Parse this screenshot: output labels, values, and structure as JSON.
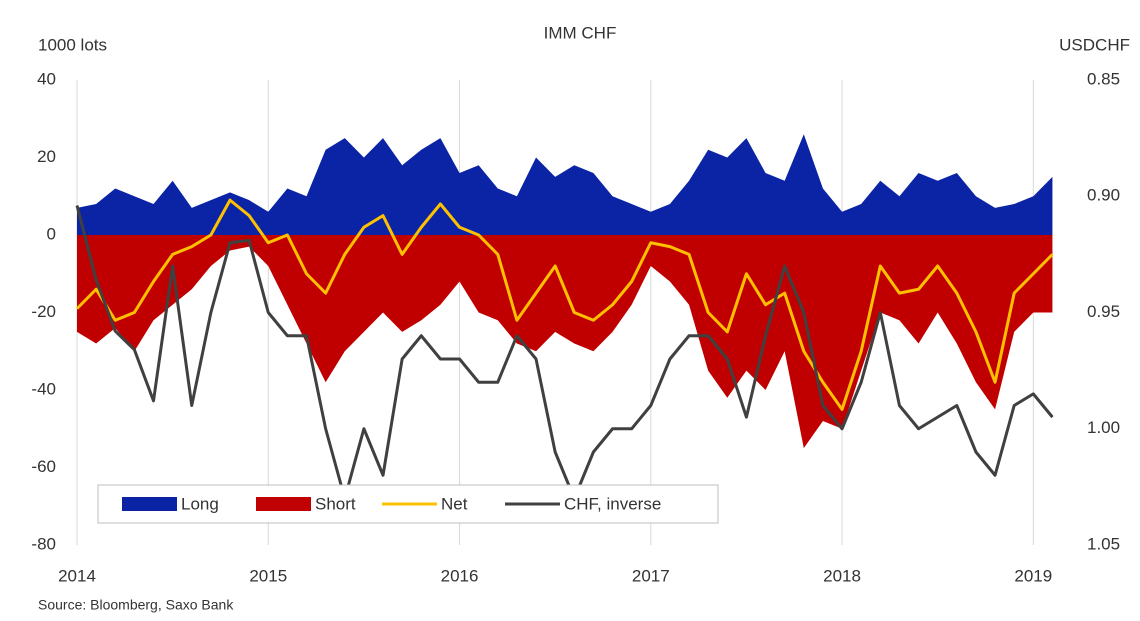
{
  "chart_data": {
    "type": "area-line",
    "title": "IMM CHF",
    "y_label": "1000 lots",
    "y2_label": "USDCHF",
    "source": "Source: Bloomberg,  Saxo Bank",
    "x": [
      2014.0,
      2014.1,
      2014.2,
      2014.3,
      2014.4,
      2014.5,
      2014.6,
      2014.7,
      2014.8,
      2014.9,
      2015.0,
      2015.1,
      2015.2,
      2015.3,
      2015.4,
      2015.5,
      2015.6,
      2015.7,
      2015.8,
      2015.9,
      2016.0,
      2016.1,
      2016.2,
      2016.3,
      2016.4,
      2016.5,
      2016.6,
      2016.7,
      2016.8,
      2016.9,
      2017.0,
      2017.1,
      2017.2,
      2017.3,
      2017.4,
      2017.5,
      2017.6,
      2017.7,
      2017.8,
      2017.9,
      2018.0,
      2018.1,
      2018.2,
      2018.3,
      2018.4,
      2018.5,
      2018.6,
      2018.7,
      2018.8,
      2018.9,
      2019.0,
      2019.1
    ],
    "series": [
      {
        "name": "Long",
        "color": "#0b24a6",
        "kind": "area",
        "axis": "y",
        "values": [
          7,
          8,
          12,
          10,
          8,
          14,
          7,
          9,
          11,
          9,
          6,
          12,
          10,
          22,
          25,
          20,
          25,
          18,
          22,
          25,
          16,
          18,
          12,
          10,
          20,
          15,
          18,
          16,
          10,
          8,
          6,
          8,
          14,
          22,
          20,
          25,
          16,
          14,
          26,
          12,
          6,
          8,
          14,
          10,
          16,
          14,
          16,
          10,
          7,
          8,
          10,
          15
        ]
      },
      {
        "name": "Short",
        "color": "#c00000",
        "kind": "area",
        "axis": "y",
        "values": [
          -25,
          -28,
          -24,
          -30,
          -22,
          -18,
          -14,
          -8,
          -4,
          -3,
          -8,
          -18,
          -28,
          -38,
          -30,
          -25,
          -20,
          -25,
          -22,
          -18,
          -12,
          -20,
          -22,
          -28,
          -30,
          -25,
          -28,
          -30,
          -25,
          -18,
          -8,
          -12,
          -18,
          -35,
          -42,
          -35,
          -40,
          -30,
          -55,
          -48,
          -50,
          -35,
          -20,
          -22,
          -28,
          -20,
          -28,
          -38,
          -45,
          -25,
          -20,
          -20
        ]
      },
      {
        "name": "Net",
        "color": "#ffc000",
        "kind": "line",
        "axis": "y",
        "values": [
          -19,
          -14,
          -22,
          -20,
          -12,
          -5,
          -3,
          0,
          9,
          5,
          -2,
          0,
          -10,
          -15,
          -5,
          2,
          5,
          -5,
          2,
          8,
          2,
          0,
          -5,
          -22,
          -15,
          -8,
          -20,
          -22,
          -18,
          -12,
          -2,
          -3,
          -5,
          -20,
          -25,
          -10,
          -18,
          -15,
          -30,
          -38,
          -45,
          -30,
          -8,
          -15,
          -14,
          -8,
          -15,
          -25,
          -38,
          -15,
          -10,
          -5
        ]
      },
      {
        "name": "CHF, inverse",
        "color": "#404040",
        "kind": "line",
        "axis": "y2",
        "values": [
          0.904,
          0.936,
          0.958,
          0.966,
          0.988,
          0.93,
          0.99,
          0.95,
          0.92,
          0.919,
          0.95,
          0.96,
          0.96,
          1.0,
          1.03,
          1.0,
          1.02,
          0.97,
          0.96,
          0.97,
          0.97,
          0.98,
          0.98,
          0.96,
          0.97,
          1.01,
          1.03,
          1.01,
          1.0,
          1.0,
          0.99,
          0.97,
          0.96,
          0.96,
          0.97,
          0.995,
          0.96,
          0.93,
          0.95,
          0.99,
          1.0,
          0.98,
          0.95,
          0.99,
          1.0,
          0.995,
          0.99,
          1.01,
          1.02,
          0.99,
          0.985,
          0.995
        ]
      }
    ],
    "xlim": [
      2014,
      2019.15
    ],
    "xticks": [
      2014,
      2015,
      2016,
      2017,
      2018,
      2019
    ],
    "ylim": [
      -80,
      40
    ],
    "yticks": [
      -80,
      -60,
      -40,
      -20,
      0,
      20,
      40
    ],
    "y2lim": [
      1.05,
      0.85
    ],
    "y2ticks": [
      {
        "value": 0.85,
        "label": "0.85"
      },
      {
        "value": 0.9,
        "label": "0.90"
      },
      0.95,
      {
        "value": 1.0,
        "label": "1.00"
      },
      1.05
    ],
    "grid": "x",
    "legend": "bottom-left"
  }
}
